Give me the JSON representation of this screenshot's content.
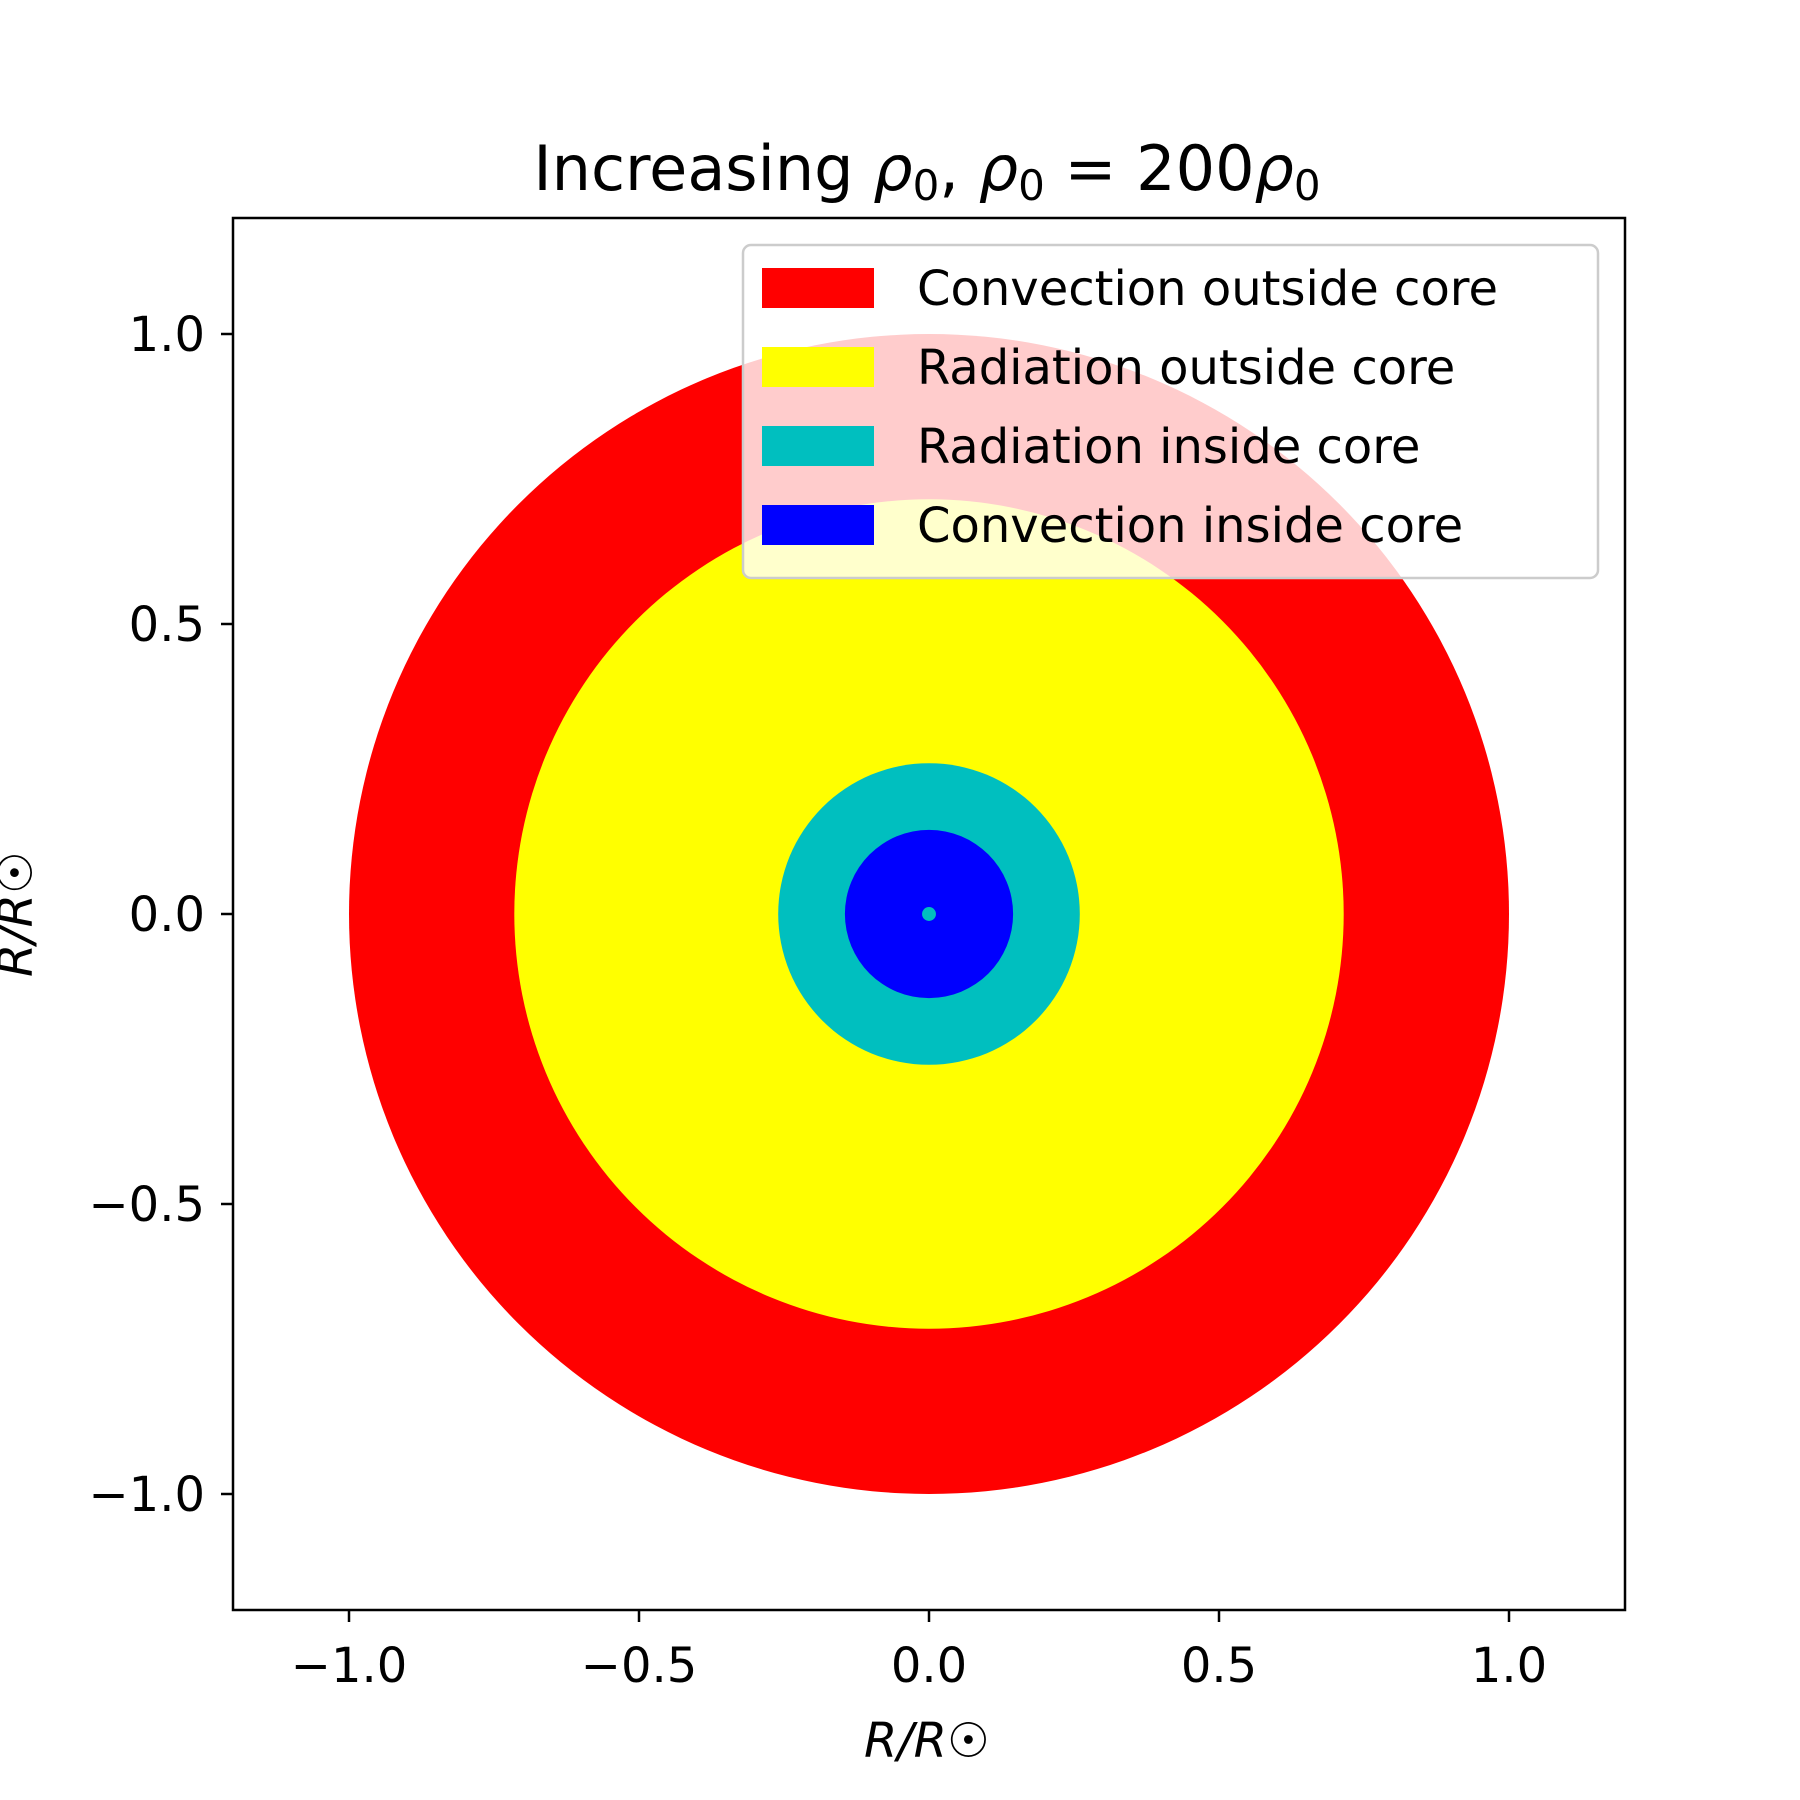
{
  "chart_data": {
    "type": "area",
    "title": "Increasing ρ₀, ρ₀ = 200ρ₀",
    "title_parts": {
      "prefix": "Increasing ",
      "rho": "ρ",
      "sub": "0",
      "sep": ", ",
      "eq": " = 200"
    },
    "xlabel": "R/R☉",
    "ylabel": "R/R☉",
    "xlim": [
      -1.2,
      1.2
    ],
    "ylim": [
      -1.2,
      1.2
    ],
    "xticks": [
      -1.0,
      -0.5,
      0.0,
      0.5,
      1.0
    ],
    "xtick_labels": [
      "−1.0",
      "−0.5",
      "0.0",
      "0.5",
      "1.0"
    ],
    "yticks": [
      -1.0,
      -0.5,
      0.0,
      0.5,
      1.0
    ],
    "ytick_labels": [
      "−1.0",
      "−0.5",
      "0.0",
      "0.5",
      "1.0"
    ],
    "grid": false,
    "legend_position": "top-right",
    "series": [
      {
        "name": "Convection outside core",
        "outer_radius": 1.0,
        "color": "#ff0000"
      },
      {
        "name": "Radiation outside core",
        "outer_radius": 0.715,
        "color": "#ffff00"
      },
      {
        "name": "Radiation inside core",
        "outer_radius": 0.26,
        "color": "#00bfbf"
      },
      {
        "name": "Convection inside core",
        "outer_radius": 0.145,
        "color": "#0000ff"
      }
    ],
    "center_dot": {
      "radius": 0.012,
      "color": "#00bfbf"
    }
  }
}
